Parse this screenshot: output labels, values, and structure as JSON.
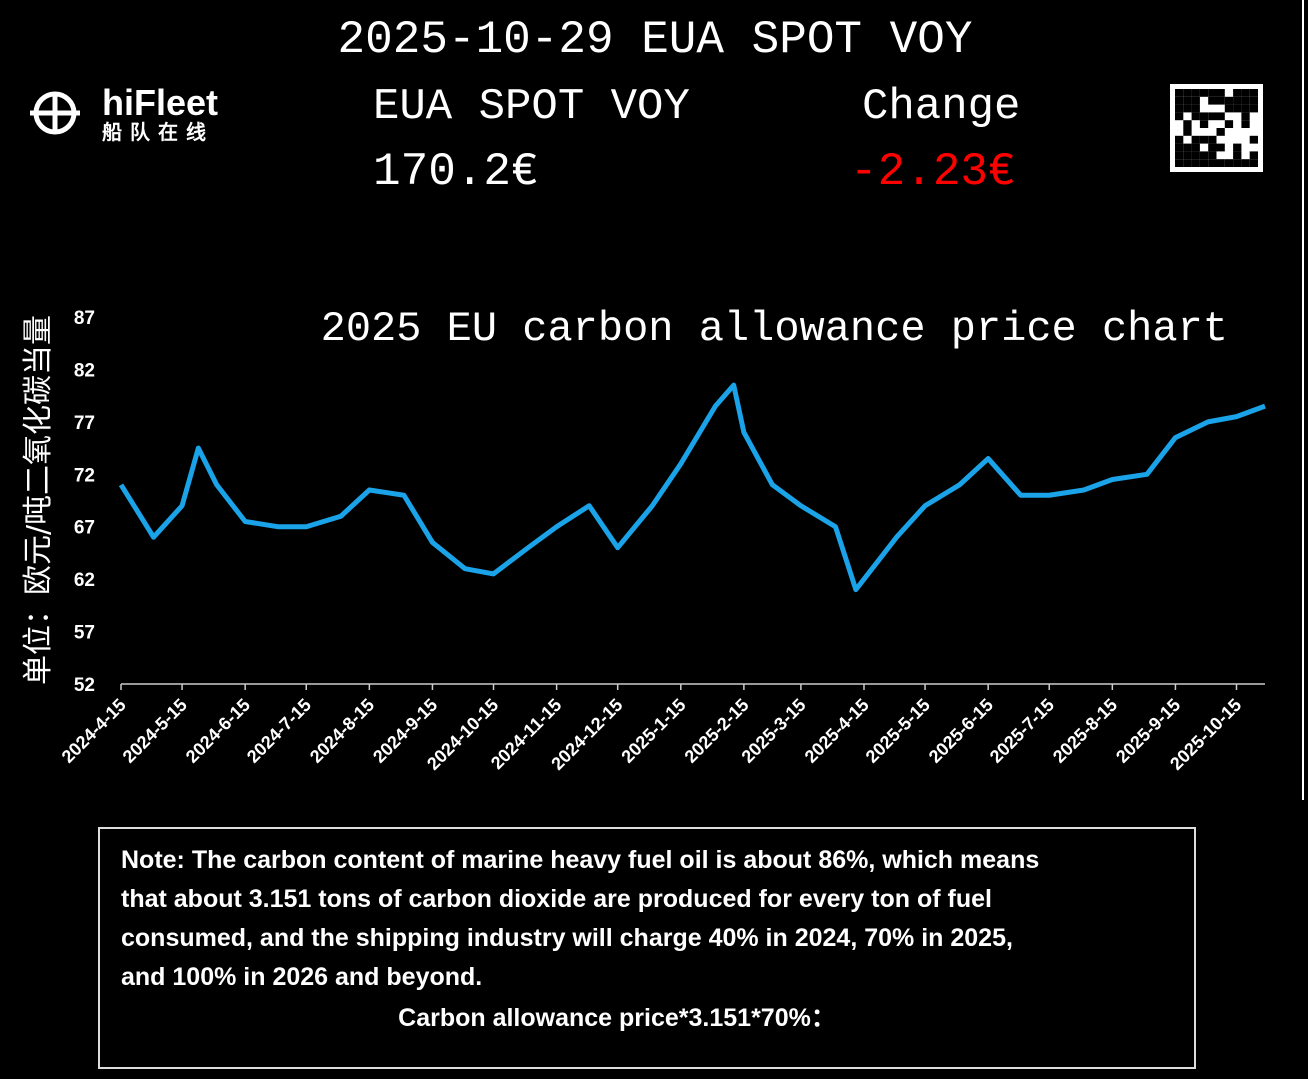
{
  "header": {
    "title": "2025-10-29 EUA SPOT VOY",
    "logo_name": "hiFleet",
    "logo_subtitle": "船队在线",
    "price_label": "EUA SPOT VOY",
    "change_label": "Change",
    "price": "170.2€",
    "change": "-2.23€"
  },
  "chart_data": {
    "type": "line",
    "title": "2025 EU carbon allowance price chart",
    "y_label": "单位：欧元/吨二氧化碳当量",
    "x": [
      "2024-04-15",
      "2024-05-01",
      "2024-05-15",
      "2024-05-23",
      "2024-06-01",
      "2024-06-15",
      "2024-07-01",
      "2024-07-15",
      "2024-08-01",
      "2024-08-15",
      "2024-09-01",
      "2024-09-15",
      "2024-10-01",
      "2024-10-15",
      "2024-11-01",
      "2024-11-15",
      "2024-12-01",
      "2024-12-15",
      "2025-01-01",
      "2025-01-15",
      "2025-02-01",
      "2025-02-10",
      "2025-02-15",
      "2025-03-01",
      "2025-03-15",
      "2025-04-01",
      "2025-04-11",
      "2025-05-01",
      "2025-05-15",
      "2025-06-01",
      "2025-06-15",
      "2025-07-01",
      "2025-07-15",
      "2025-08-01",
      "2025-08-15",
      "2025-09-01",
      "2025-09-15",
      "2025-10-01",
      "2025-10-15",
      "2025-10-29"
    ],
    "series": [
      {
        "name": "EUA",
        "color": "#1aa3e8",
        "values": [
          71,
          66,
          69,
          74.5,
          71,
          67.5,
          67,
          67,
          68,
          70.5,
          70,
          65.5,
          63,
          62.5,
          65,
          67,
          69,
          65,
          69,
          73,
          78.5,
          80.5,
          76,
          71,
          69,
          67,
          61,
          66,
          69,
          71,
          73.5,
          70,
          70,
          70.5,
          71.5,
          72,
          75.5,
          77,
          77.5,
          78.5
        ]
      }
    ],
    "xlim": [
      "2024-04-15",
      "2025-10-29"
    ],
    "xticks": [
      {
        "value": "2024-04-15",
        "label": "2024-4-15"
      },
      {
        "value": "2024-05-15",
        "label": "2024-5-15"
      },
      {
        "value": "2024-06-15",
        "label": "2024-6-15"
      },
      {
        "value": "2024-07-15",
        "label": "2024-7-15"
      },
      {
        "value": "2024-08-15",
        "label": "2024-8-15"
      },
      {
        "value": "2024-09-15",
        "label": "2024-9-15"
      },
      {
        "value": "2024-10-15",
        "label": "2024-10-15"
      },
      {
        "value": "2024-11-15",
        "label": "2024-11-15"
      },
      {
        "value": "2024-12-15",
        "label": "2024-12-15"
      },
      {
        "value": "2025-01-15",
        "label": "2025-1-15"
      },
      {
        "value": "2025-02-15",
        "label": "2025-2-15"
      },
      {
        "value": "2025-03-15",
        "label": "2025-3-15"
      },
      {
        "value": "2025-04-15",
        "label": "2025-4-15"
      },
      {
        "value": "2025-05-15",
        "label": "2025-5-15"
      },
      {
        "value": "2025-06-15",
        "label": "2025-6-15"
      },
      {
        "value": "2025-07-15",
        "label": "2025-7-15"
      },
      {
        "value": "2025-08-15",
        "label": "2025-8-15"
      },
      {
        "value": "2025-09-15",
        "label": "2025-9-15"
      },
      {
        "value": "2025-10-15",
        "label": "2025-10-15"
      }
    ],
    "ylim": [
      52,
      87
    ],
    "yticks": [
      52,
      57,
      62,
      67,
      72,
      77,
      82,
      87
    ],
    "grid": false
  },
  "note": {
    "lines": [
      "Note: The carbon content of marine heavy fuel oil is about 86%, which means",
      "that about 3.151 tons of carbon dioxide are produced for every ton of fuel",
      "consumed, and the shipping industry will charge 40% in 2024, 70% in 2025,",
      "and 100% in 2026 and beyond."
    ],
    "formula": "Carbon allowance price*3.151*70%："
  }
}
